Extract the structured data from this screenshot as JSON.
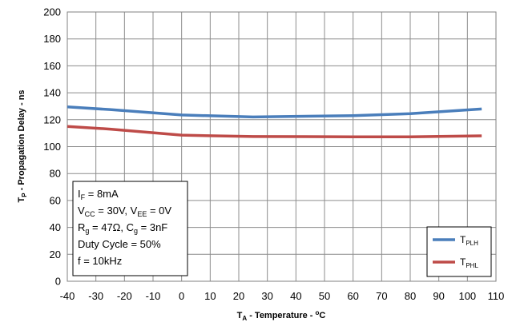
{
  "chart_data": {
    "type": "line",
    "xlabel": {
      "main": "T",
      "sub": "A",
      "rest": " - Temperature - ",
      "unit_sup": "o",
      "unit": "C"
    },
    "ylabel": {
      "main": "T",
      "sub": "P",
      "rest": " - Propagation Delay - ns"
    },
    "xlim": [
      -40,
      110
    ],
    "ylim": [
      0,
      200
    ],
    "xticks": [
      -40,
      -30,
      -20,
      -10,
      0,
      10,
      20,
      30,
      40,
      50,
      60,
      70,
      80,
      90,
      100,
      110
    ],
    "yticks": [
      0,
      20,
      40,
      60,
      80,
      100,
      120,
      140,
      160,
      180,
      200
    ],
    "grid": true,
    "legend_position": "bottom-right",
    "series": [
      {
        "name": "TPLH",
        "label_main": "T",
        "label_sub": "PLH",
        "color": "#4a7ebb",
        "x": [
          -40,
          -25,
          0,
          25,
          60,
          80,
          105
        ],
        "y": [
          129.5,
          127.5,
          123.5,
          122,
          123,
          124.5,
          128
        ]
      },
      {
        "name": "TPHL",
        "label_main": "T",
        "label_sub": "PHL",
        "color": "#be4b48",
        "x": [
          -40,
          -25,
          0,
          25,
          60,
          80,
          105
        ],
        "y": [
          115,
          113,
          108.5,
          107.5,
          107.3,
          107.3,
          108
        ]
      }
    ],
    "annotations": [
      {
        "parts": [
          {
            "t": "I"
          },
          {
            "t": "F",
            "sub": true
          },
          {
            "t": " = 8mA"
          }
        ]
      },
      {
        "parts": [
          {
            "t": "V"
          },
          {
            "t": "CC",
            "sub": true
          },
          {
            "t": " = 30V, V"
          },
          {
            "t": "EE",
            "sub": true
          },
          {
            "t": " = 0V"
          }
        ]
      },
      {
        "parts": [
          {
            "t": "R"
          },
          {
            "t": "g",
            "sub": true
          },
          {
            "t": " = 47Ω, C"
          },
          {
            "t": "g",
            "sub": true
          },
          {
            "t": " = 3nF"
          }
        ]
      },
      {
        "parts": [
          {
            "t": "Duty Cycle = 50%"
          }
        ]
      },
      {
        "parts": [
          {
            "t": "f = 10kHz"
          }
        ]
      }
    ]
  }
}
